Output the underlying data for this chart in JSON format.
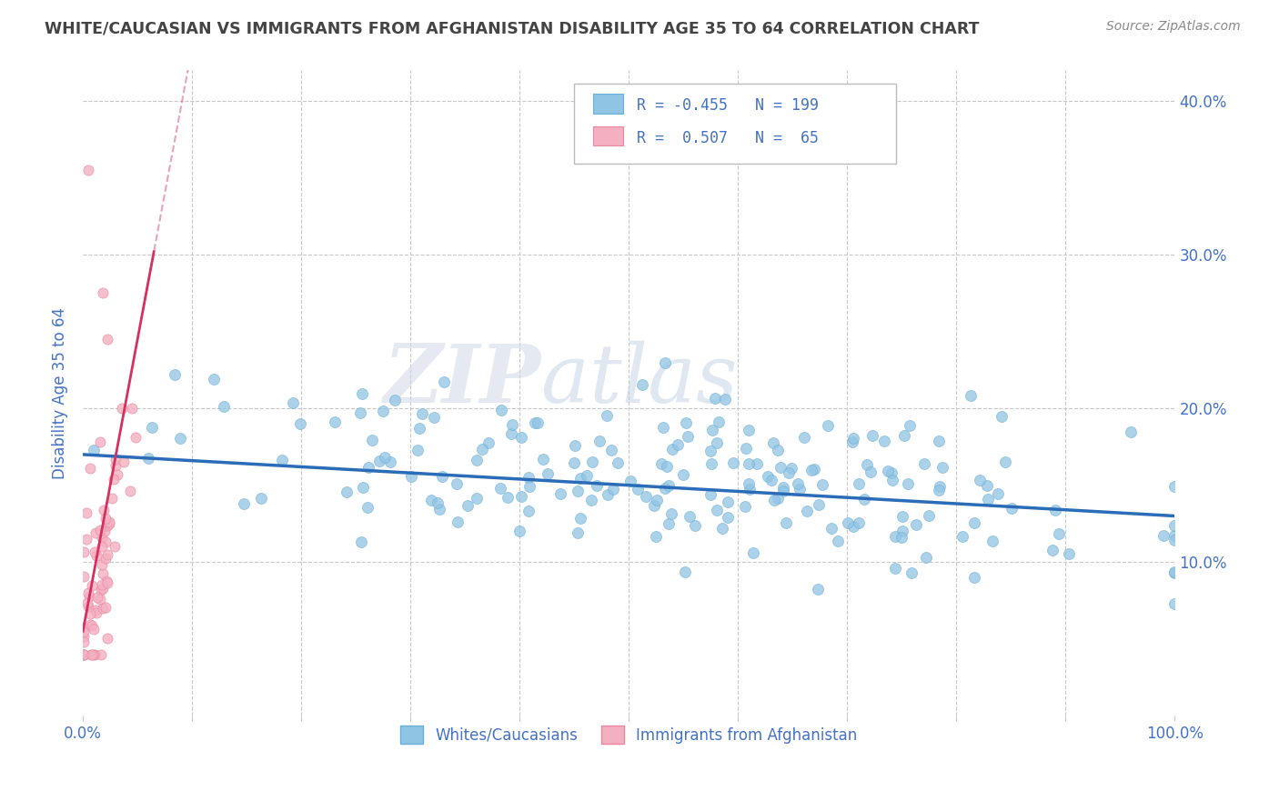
{
  "title": "WHITE/CAUCASIAN VS IMMIGRANTS FROM AFGHANISTAN DISABILITY AGE 35 TO 64 CORRELATION CHART",
  "source": "Source: ZipAtlas.com",
  "ylabel": "Disability Age 35 to 64",
  "x_min": 0.0,
  "x_max": 1.0,
  "y_min": 0.0,
  "y_max": 0.42,
  "x_ticks": [
    0.0,
    0.1,
    0.2,
    0.3,
    0.4,
    0.5,
    0.6,
    0.7,
    0.8,
    0.9,
    1.0
  ],
  "y_ticks": [
    0.0,
    0.1,
    0.2,
    0.3,
    0.4
  ],
  "grid_color": "#c8c8c8",
  "watermark_zip": "ZIP",
  "watermark_atlas": "atlas",
  "blue_color": "#90c4e4",
  "blue_edge_color": "#6aafd6",
  "blue_line_color": "#2b6cb8",
  "pink_color": "#f4afc0",
  "pink_edge_color": "#e888a0",
  "pink_line_color": "#d63060",
  "legend_R_blue": "-0.455",
  "legend_N_blue": "199",
  "legend_R_pink": "0.507",
  "legend_N_pink": "65",
  "legend_label_blue": "Whites/Caucasians",
  "legend_label_pink": "Immigrants from Afghanistan",
  "blue_R": -0.455,
  "blue_N": 199,
  "pink_R": 0.507,
  "pink_N": 65,
  "background_color": "#ffffff",
  "title_color": "#444444",
  "axis_label_color": "#4472c4",
  "tick_label_color": "#4472c4",
  "legend_text_color": "#4472c4",
  "source_color": "#888888",
  "blue_line_intercept": 0.17,
  "blue_line_slope": -0.04,
  "pink_line_intercept": 0.055,
  "pink_line_slope": 3.8
}
